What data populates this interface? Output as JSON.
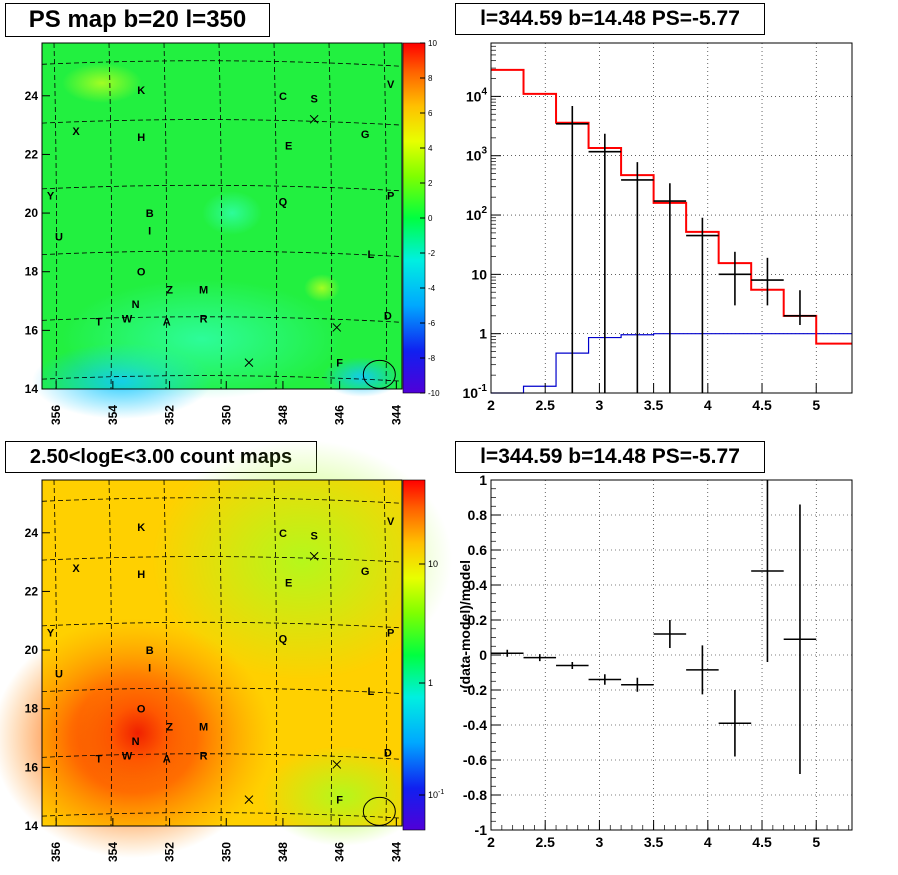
{
  "chart_data": [
    {
      "id": "ps-map",
      "type": "heatmap",
      "title": "PS map b=20 l=350",
      "x_ticks": [
        "356",
        "354",
        "352",
        "350",
        "348",
        "346",
        "344"
      ],
      "y_ticks": [
        "14",
        "16",
        "18",
        "20",
        "22",
        "24"
      ],
      "colorbar_ticks": [
        "10",
        "8",
        "6",
        "4",
        "2",
        "0",
        "-2",
        "-4",
        "-6",
        "-8",
        "-10"
      ],
      "xlim": [
        356.5,
        343.8
      ],
      "ylim": [
        14,
        25.8
      ],
      "zlim": [
        -10,
        10
      ],
      "sources": [
        {
          "label": "K",
          "l": 353.0,
          "b": 24.2
        },
        {
          "label": "C",
          "l": 348.0,
          "b": 24.0
        },
        {
          "label": "S",
          "l": 346.9,
          "b": 23.9
        },
        {
          "label": "V",
          "l": 344.2,
          "b": 24.4
        },
        {
          "label": "X",
          "l": 355.3,
          "b": 22.8
        },
        {
          "label": "H",
          "l": 353.0,
          "b": 22.6
        },
        {
          "label": "E",
          "l": 347.8,
          "b": 22.3
        },
        {
          "label": "G",
          "l": 345.1,
          "b": 22.7
        },
        {
          "label": "Y",
          "l": 356.2,
          "b": 20.6
        },
        {
          "label": "Q",
          "l": 348.0,
          "b": 20.4
        },
        {
          "label": "P",
          "l": 344.2,
          "b": 20.6
        },
        {
          "label": "B",
          "l": 352.7,
          "b": 20.0
        },
        {
          "label": "I",
          "l": 352.7,
          "b": 19.4
        },
        {
          "label": "U",
          "l": 355.9,
          "b": 19.2
        },
        {
          "label": "L",
          "l": 344.9,
          "b": 18.6
        },
        {
          "label": "O",
          "l": 353.0,
          "b": 18.0
        },
        {
          "label": "Z",
          "l": 352.0,
          "b": 17.4
        },
        {
          "label": "M",
          "l": 350.8,
          "b": 17.4
        },
        {
          "label": "N",
          "l": 353.2,
          "b": 16.9
        },
        {
          "label": "T",
          "l": 354.5,
          "b": 16.3
        },
        {
          "label": "W",
          "l": 353.5,
          "b": 16.4
        },
        {
          "label": "A",
          "l": 352.1,
          "b": 16.3
        },
        {
          "label": "R",
          "l": 350.8,
          "b": 16.4
        },
        {
          "label": "D",
          "l": 344.3,
          "b": 16.5
        },
        {
          "label": "F",
          "l": 346.0,
          "b": 14.9
        }
      ],
      "markers": [
        {
          "l": 346.9,
          "b": 23.2
        },
        {
          "l": 349.2,
          "b": 14.9
        },
        {
          "l": 346.1,
          "b": 16.1
        }
      ],
      "circle": {
        "l": 344.6,
        "b": 14.5
      }
    },
    {
      "id": "spectrum",
      "type": "line",
      "title": "l=344.59 b=14.48 PS=-5.77",
      "x_ticks": [
        "2",
        "2.5",
        "3",
        "3.5",
        "4",
        "4.5",
        "5"
      ],
      "y_ticks": [
        "10^-1",
        "1",
        "10",
        "10^2",
        "10^3",
        "10^4"
      ],
      "y_tick_parts": [
        [
          "10",
          "-1"
        ],
        [
          "1",
          ""
        ],
        [
          "10",
          ""
        ],
        [
          "10",
          "2"
        ],
        [
          "10",
          "3"
        ],
        [
          "10",
          "4"
        ]
      ],
      "xlim": [
        2,
        5.33
      ],
      "ylim_log10": [
        -1,
        4.9
      ],
      "yscale": "log",
      "grid": true,
      "model_total": {
        "color": "#ff0000",
        "edges": [
          2.0,
          2.3,
          2.6,
          2.9,
          3.2,
          3.5,
          3.8,
          4.1,
          4.4,
          4.7,
          5.0,
          5.33
        ],
        "values": [
          28000,
          11000,
          3600,
          1350,
          470,
          160,
          52,
          15.5,
          5.5,
          2.0,
          0.68
        ]
      },
      "model_ps": {
        "color": "#0000cc",
        "edges": [
          2.0,
          2.3,
          2.6,
          2.9,
          3.2,
          3.5,
          3.8,
          4.1,
          4.4,
          4.7,
          5.0,
          5.33
        ],
        "values": [
          0.1,
          0.13,
          0.47,
          0.86,
          0.96,
          1.0,
          1.0,
          1.0,
          1.0,
          1.0,
          1.0
        ]
      },
      "data_points": [
        {
          "x": 2.75,
          "y": 3450,
          "xerr": 0.15,
          "yerr": [
            3450,
            3450
          ]
        },
        {
          "x": 3.05,
          "y": 1170,
          "xerr": 0.15,
          "yerr": [
            1170,
            1170
          ]
        },
        {
          "x": 3.35,
          "y": 390,
          "xerr": 0.15,
          "yerr": [
            390,
            390
          ]
        },
        {
          "x": 3.65,
          "y": 172,
          "xerr": 0.15,
          "yerr": [
            172,
            172
          ]
        },
        {
          "x": 3.95,
          "y": 45,
          "xerr": 0.15,
          "yerr": [
            45,
            45
          ]
        },
        {
          "x": 4.25,
          "y": 10,
          "xerr": 0.15,
          "yerr": [
            7,
            14
          ]
        },
        {
          "x": 4.55,
          "y": 8,
          "xerr": 0.15,
          "yerr": [
            5,
            11
          ]
        },
        {
          "x": 4.85,
          "y": 2,
          "xerr": 0.15,
          "yerr": [
            0.6,
            3.4
          ]
        }
      ]
    },
    {
      "id": "count-map",
      "type": "heatmap",
      "title": "2.50<logE<3.00 count maps",
      "x_ticks": [
        "356",
        "354",
        "352",
        "350",
        "348",
        "346",
        "344"
      ],
      "y_ticks": [
        "14",
        "16",
        "18",
        "20",
        "22",
        "24"
      ],
      "colorbar_ticks": [
        {
          "base": "10",
          "exp": ""
        },
        {
          "base": "1",
          "exp": ""
        },
        {
          "base": "10",
          "exp": "-1"
        }
      ],
      "zscale": "log",
      "xlim": [
        356.5,
        343.8
      ],
      "ylim": [
        14,
        25.8
      ],
      "hotspot": {
        "l": 353.3,
        "b": 17.0
      }
    },
    {
      "id": "residuals",
      "type": "scatter",
      "title": "l=344.59 b=14.48 PS=-5.77",
      "ylabel": "(data-model)/model",
      "x_ticks": [
        "2",
        "2.5",
        "3",
        "3.5",
        "4",
        "4.5",
        "5"
      ],
      "y_ticks": [
        "-1",
        "-0.8",
        "-0.6",
        "-0.4",
        "-0.2",
        "0",
        "0.2",
        "0.4",
        "0.6",
        "0.8",
        "1"
      ],
      "xlim": [
        2,
        5.33
      ],
      "ylim": [
        -1,
        1
      ],
      "grid": true,
      "points": [
        {
          "x": 2.15,
          "y": 0.01,
          "xerr": 0.15,
          "yerr": 0.02
        },
        {
          "x": 2.45,
          "y": -0.015,
          "xerr": 0.15,
          "yerr": 0.02
        },
        {
          "x": 2.75,
          "y": -0.06,
          "xerr": 0.15,
          "yerr": 0.02
        },
        {
          "x": 3.05,
          "y": -0.14,
          "xerr": 0.15,
          "yerr": 0.03
        },
        {
          "x": 3.35,
          "y": -0.17,
          "xerr": 0.15,
          "yerr": 0.04
        },
        {
          "x": 3.65,
          "y": 0.12,
          "xerr": 0.15,
          "yerr": 0.08
        },
        {
          "x": 3.95,
          "y": -0.085,
          "xerr": 0.15,
          "yerr": 0.14
        },
        {
          "x": 4.25,
          "y": -0.39,
          "xerr": 0.15,
          "yerr": 0.19
        },
        {
          "x": 4.55,
          "y": 0.48,
          "xerr": 0.15,
          "yerr": 0.52
        },
        {
          "x": 4.85,
          "y": 0.09,
          "xerr": 0.15,
          "yerr": 0.77
        }
      ]
    }
  ]
}
